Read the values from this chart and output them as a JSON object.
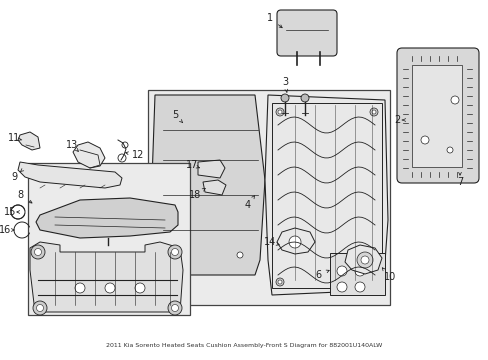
{
  "title": "2011 Kia Sorento Heated Seats Cushion Assembly-Front S Diagram for 882001U140ALW",
  "bg_color": "#ffffff",
  "fig_width": 4.89,
  "fig_height": 3.6,
  "dpi": 100,
  "line_color": "#222222",
  "box_fill": "#ebebeb",
  "part_fill": "#e0e0e0",
  "font_size": 7
}
